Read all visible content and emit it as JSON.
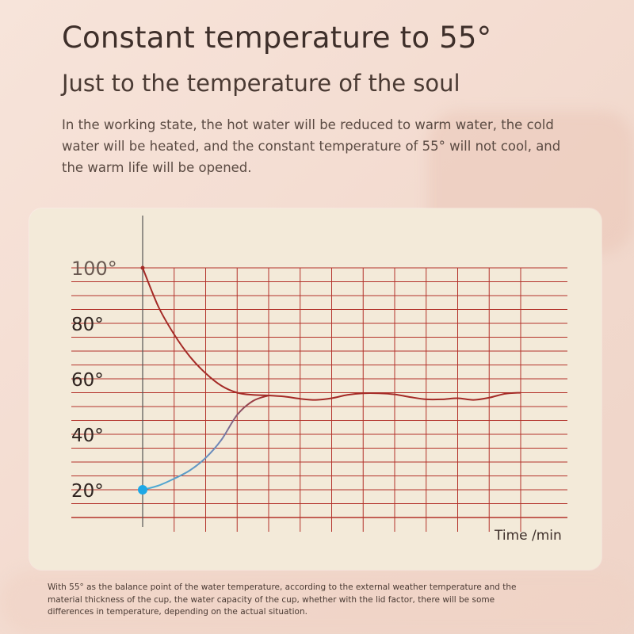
{
  "header": {
    "title": "Constant temperature to 55°",
    "subtitle": "Just to the temperature of the soul",
    "description": "In the working state, the hot water will be reduced to warm water, the cold water will be heated, and the constant temperature of 55° will not cool, and the warm life will be opened."
  },
  "footnote": "With 55° as the balance point of the water temperature, according to the external weather temperature and the material thickness of the cup, the water capacity of the cup, whether with the lid factor, there will be some differences in temperature, depending on the actual situation.",
  "colors": {
    "grid": "#b3322a",
    "hot_series": "#a42a26",
    "cold_series": "#4aaed6",
    "cold_marker": "#1ea8e6"
  },
  "chart_data": {
    "type": "line",
    "xlabel": "Time /min",
    "ylabel": "",
    "y_tick_labels": [
      "20°",
      "40°",
      "60°",
      "80°",
      "100°"
    ],
    "y_ticks": [
      20,
      40,
      60,
      80,
      100
    ],
    "ylim": [
      10,
      100
    ],
    "xlim": [
      0,
      12
    ],
    "grid": true,
    "series": [
      {
        "role": "hot",
        "x": [
          0,
          0.5,
          1,
          1.5,
          2,
          2.5,
          3,
          3.5,
          4,
          4.5,
          5,
          5.5,
          6,
          6.5,
          7,
          7.5,
          8,
          8.5,
          9,
          9.5,
          10,
          10.5,
          11,
          11.5,
          12
        ],
        "y": [
          100,
          86,
          76,
          68,
          62,
          57.5,
          55,
          54.2,
          54,
          53.6,
          52.8,
          52.4,
          53,
          54.2,
          54.8,
          54.8,
          54.4,
          53.4,
          52.6,
          52.6,
          53,
          52.4,
          53.2,
          54.6,
          55
        ]
      },
      {
        "role": "cold",
        "x": [
          0,
          0.5,
          1,
          1.5,
          2,
          2.5,
          3,
          3.5,
          4
        ],
        "y": [
          20,
          21.5,
          24,
          27,
          31.5,
          38,
          47,
          52,
          54
        ]
      }
    ]
  }
}
